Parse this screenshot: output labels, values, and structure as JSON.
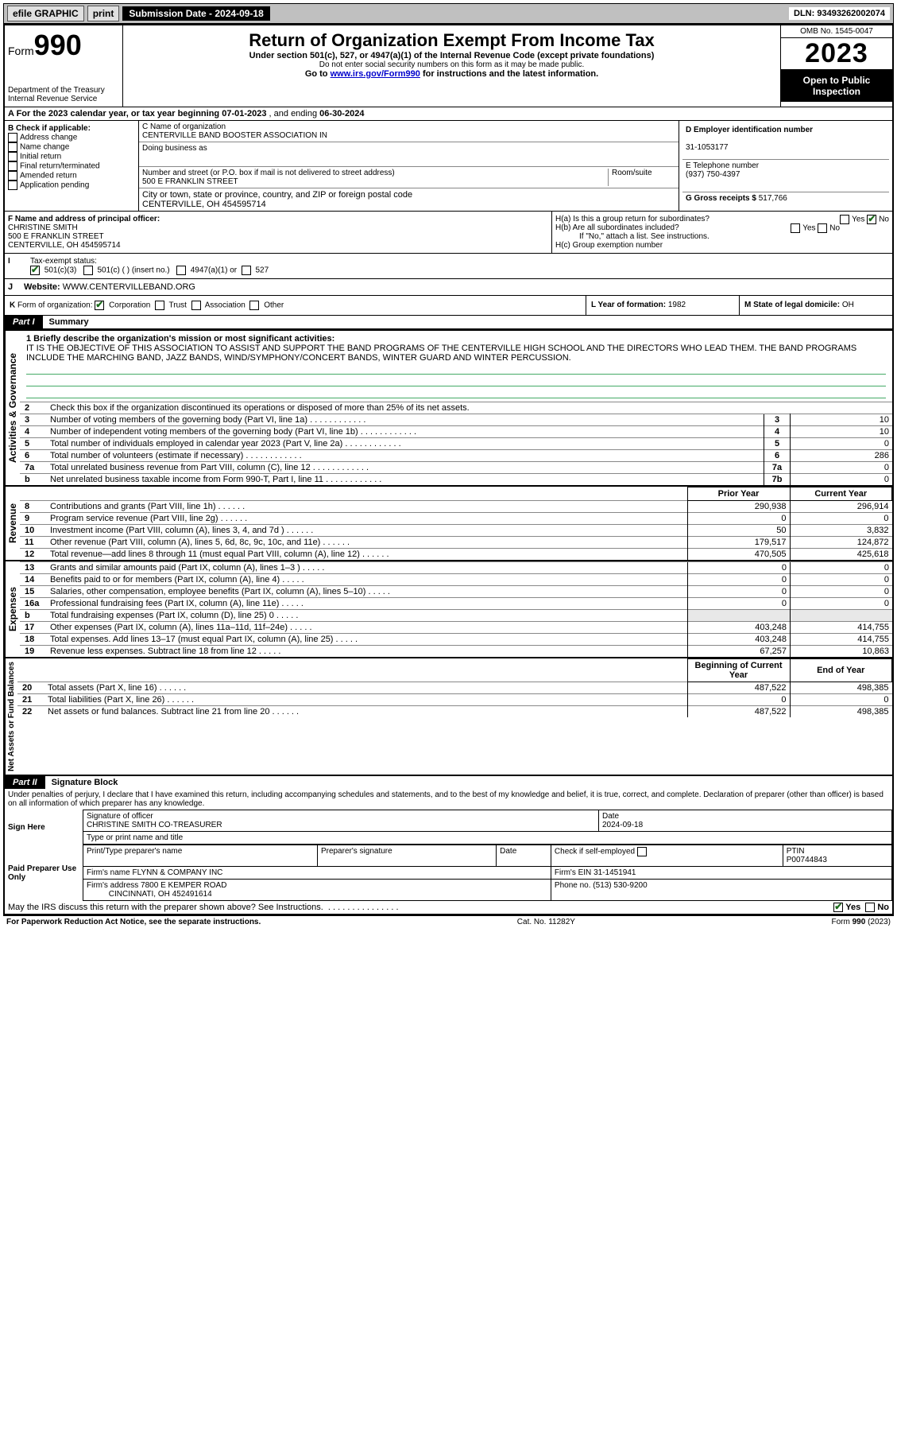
{
  "colors": {
    "accent": "#000000",
    "check": "#1a6b1a",
    "link": "#0000cc",
    "rule": "#4a6"
  },
  "topbar": {
    "efile": "efile GRAPHIC",
    "print": "print",
    "submission": "Submission Date - 2024-09-18",
    "dln": "DLN: 93493262002074"
  },
  "header": {
    "form_prefix": "Form",
    "form_no": "990",
    "dept": "Department of the Treasury",
    "irs": "Internal Revenue Service",
    "title": "Return of Organization Exempt From Income Tax",
    "sub1": "Under section 501(c), 527, or 4947(a)(1) of the Internal Revenue Code (except private foundations)",
    "sub2": "Do not enter social security numbers on this form as it may be made public.",
    "sub3_pre": "Go to ",
    "sub3_link": "www.irs.gov/Form990",
    "sub3_post": " for instructions and the latest information.",
    "omb": "OMB No. 1545-0047",
    "year": "2023",
    "inspect": "Open to Public Inspection"
  },
  "a_line": {
    "prefix": "A For the 2023 calendar year, or tax year beginning ",
    "begin": "07-01-2023",
    "mid": " , and ending ",
    "end": "06-30-2024"
  },
  "b": {
    "label": "B Check if applicable:",
    "opts": [
      "Address change",
      "Name change",
      "Initial return",
      "Final return/terminated",
      "Amended return",
      "Application pending"
    ]
  },
  "c": {
    "name_lbl": "C Name of organization",
    "name": "CENTERVILLE BAND BOOSTER ASSOCIATION IN",
    "dba_lbl": "Doing business as",
    "addr_lbl": "Number and street (or P.O. box if mail is not delivered to street address)",
    "room_lbl": "Room/suite",
    "addr": "500 E FRANKLIN STREET",
    "city_lbl": "City or town, state or province, country, and ZIP or foreign postal code",
    "city": "CENTERVILLE, OH  454595714"
  },
  "d": {
    "lbl": "D Employer identification number",
    "val": "31-1053177"
  },
  "e": {
    "lbl": "E Telephone number",
    "val": "(937) 750-4397"
  },
  "g": {
    "lbl": "G Gross receipts $",
    "val": "517,766"
  },
  "f": {
    "lbl": "F Name and address of principal officer:",
    "name": "CHRISTINE SMITH",
    "addr1": "500 E FRANKLIN STREET",
    "addr2": "CENTERVILLE, OH  454595714"
  },
  "h": {
    "a": "H(a)  Is this a group return for subordinates?",
    "b": "H(b)  Are all subordinates included?",
    "note": "If \"No,\" attach a list. See instructions.",
    "c": "H(c)  Group exemption number  ",
    "yes": "Yes",
    "no": "No"
  },
  "i": {
    "lbl": "I",
    "txt": "Tax-exempt status:",
    "o1": "501(c)(3)",
    "o2": "501(c) (   ) (insert no.)",
    "o3": "4947(a)(1) or",
    "o4": "527"
  },
  "j": {
    "lbl": "J",
    "txt": "Website: ",
    "val": "WWW.CENTERVILLEBAND.ORG"
  },
  "k": {
    "lbl": "K",
    "txt": "Form of organization:",
    "o1": "Corporation",
    "o2": "Trust",
    "o3": "Association",
    "o4": "Other"
  },
  "l": {
    "txt": "L Year of formation: ",
    "val": "1982"
  },
  "m": {
    "txt": "M State of legal domicile: ",
    "val": "OH"
  },
  "part1": {
    "lbl": "Part I",
    "ttl": "Summary"
  },
  "mission": {
    "q": "1   Briefly describe the organization's mission or most significant activities:",
    "text": "IT IS THE OBJECTIVE OF THIS ASSOCIATION TO ASSIST AND SUPPORT THE BAND PROGRAMS OF THE CENTERVILLE HIGH SCHOOL AND THE DIRECTORS WHO LEAD THEM. THE BAND PROGRAMS INCLUDE THE MARCHING BAND, JAZZ BANDS, WIND/SYMPHONY/CONCERT BANDS, WINTER GUARD AND WINTER PERCUSSION."
  },
  "vert": {
    "gov": "Activities & Governance",
    "rev": "Revenue",
    "exp": "Expenses",
    "net": "Net Assets or Fund Balances"
  },
  "gov_lines": [
    {
      "n": "2",
      "t": "Check this box      if the organization discontinued its operations or disposed of more than 25% of its net assets."
    },
    {
      "n": "3",
      "t": "Number of voting members of the governing body (Part VI, line 1a)",
      "b": "3",
      "v": "10"
    },
    {
      "n": "4",
      "t": "Number of independent voting members of the governing body (Part VI, line 1b)",
      "b": "4",
      "v": "10"
    },
    {
      "n": "5",
      "t": "Total number of individuals employed in calendar year 2023 (Part V, line 2a)",
      "b": "5",
      "v": "0"
    },
    {
      "n": "6",
      "t": "Total number of volunteers (estimate if necessary)",
      "b": "6",
      "v": "286"
    },
    {
      "n": "7a",
      "t": "Total unrelated business revenue from Part VIII, column (C), line 12",
      "b": "7a",
      "v": "0"
    },
    {
      "n": "b",
      "t": "Net unrelated business taxable income from Form 990-T, Part I, line 11",
      "b": "7b",
      "v": "0"
    }
  ],
  "cols": {
    "prior": "Prior Year",
    "current": "Current Year",
    "begin": "Beginning of Current Year",
    "end": "End of Year"
  },
  "rev_lines": [
    {
      "n": "8",
      "t": "Contributions and grants (Part VIII, line 1h)",
      "p": "290,938",
      "c": "296,914"
    },
    {
      "n": "9",
      "t": "Program service revenue (Part VIII, line 2g)",
      "p": "0",
      "c": "0"
    },
    {
      "n": "10",
      "t": "Investment income (Part VIII, column (A), lines 3, 4, and 7d )",
      "p": "50",
      "c": "3,832"
    },
    {
      "n": "11",
      "t": "Other revenue (Part VIII, column (A), lines 5, 6d, 8c, 9c, 10c, and 11e)",
      "p": "179,517",
      "c": "124,872"
    },
    {
      "n": "12",
      "t": "Total revenue—add lines 8 through 11 (must equal Part VIII, column (A), line 12)",
      "p": "470,505",
      "c": "425,618"
    }
  ],
  "exp_lines": [
    {
      "n": "13",
      "t": "Grants and similar amounts paid (Part IX, column (A), lines 1–3 )",
      "p": "0",
      "c": "0"
    },
    {
      "n": "14",
      "t": "Benefits paid to or for members (Part IX, column (A), line 4)",
      "p": "0",
      "c": "0"
    },
    {
      "n": "15",
      "t": "Salaries, other compensation, employee benefits (Part IX, column (A), lines 5–10)",
      "p": "0",
      "c": "0"
    },
    {
      "n": "16a",
      "t": "Professional fundraising fees (Part IX, column (A), line 11e)",
      "p": "0",
      "c": "0"
    },
    {
      "n": "b",
      "t": "Total fundraising expenses (Part IX, column (D), line 25) 0",
      "p": "",
      "c": ""
    },
    {
      "n": "17",
      "t": "Other expenses (Part IX, column (A), lines 11a–11d, 11f–24e)",
      "p": "403,248",
      "c": "414,755"
    },
    {
      "n": "18",
      "t": "Total expenses. Add lines 13–17 (must equal Part IX, column (A), line 25)",
      "p": "403,248",
      "c": "414,755"
    },
    {
      "n": "19",
      "t": "Revenue less expenses. Subtract line 18 from line 12",
      "p": "67,257",
      "c": "10,863"
    }
  ],
  "net_lines": [
    {
      "n": "20",
      "t": "Total assets (Part X, line 16)",
      "p": "487,522",
      "c": "498,385"
    },
    {
      "n": "21",
      "t": "Total liabilities (Part X, line 26)",
      "p": "0",
      "c": "0"
    },
    {
      "n": "22",
      "t": "Net assets or fund balances. Subtract line 21 from line 20",
      "p": "487,522",
      "c": "498,385"
    }
  ],
  "part2": {
    "lbl": "Part II",
    "ttl": "Signature Block",
    "decl": "Under penalties of perjury, I declare that I have examined this return, including accompanying schedules and statements, and to the best of my knowledge and belief, it is true, correct, and complete. Declaration of preparer (other than officer) is based on all information of which preparer has any knowledge."
  },
  "sign": {
    "here": "Sign Here",
    "sig_lbl": "Signature of officer",
    "name": "CHRISTINE SMITH CO-TREASURER",
    "type_lbl": "Type or print name and title",
    "date_lbl": "Date",
    "date": "2024-09-18"
  },
  "paid": {
    "lbl": "Paid Preparer Use Only",
    "h1": "Print/Type preparer's name",
    "h2": "Preparer's signature",
    "h3": "Date",
    "h4": "Check        if self-employed",
    "h5": "PTIN",
    "ptin": "P00744843",
    "firm_lbl": "Firm's name   ",
    "firm": "FLYNN & COMPANY INC",
    "ein_lbl": "Firm's EIN  ",
    "ein": "31-1451941",
    "addr_lbl": "Firm's address ",
    "addr1": "7800 E KEMPER ROAD",
    "addr2": "CINCINNATI, OH  452491614",
    "phone_lbl": "Phone no. ",
    "phone": "(513) 530-9200"
  },
  "discuss": {
    "q": "May the IRS discuss this return with the preparer shown above? See Instructions.",
    "yes": "Yes",
    "no": "No"
  },
  "footer": {
    "l": "For Paperwork Reduction Act Notice, see the separate instructions.",
    "c": "Cat. No. 11282Y",
    "r": "Form 990 (2023)"
  }
}
